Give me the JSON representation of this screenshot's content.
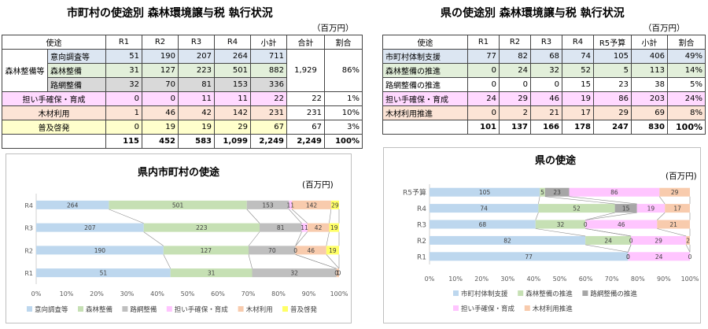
{
  "left": {
    "title": "市町村の使途別 森林環境譲与税 執行状況",
    "unit": "（百万円）",
    "table": {
      "headers": [
        "使途",
        "R1",
        "R2",
        "R3",
        "R4",
        "小計",
        "合計",
        "割合"
      ],
      "group_label": "森林整備等",
      "group_total": "1,929",
      "group_share": "86%",
      "group_rows": [
        {
          "label": "意向調査等",
          "values": [
            "51",
            "190",
            "207",
            "264",
            "711"
          ],
          "color": "#dce6f2"
        },
        {
          "label": "森林整備",
          "values": [
            "31",
            "127",
            "223",
            "501",
            "882"
          ],
          "color": "#e2efda"
        },
        {
          "label": "路網整備",
          "values": [
            "32",
            "70",
            "81",
            "153",
            "336"
          ],
          "color": "#d9d9d9"
        }
      ],
      "rows": [
        {
          "label": "担い手確保・育成",
          "values": [
            "0",
            "0",
            "11",
            "11",
            "22",
            "22",
            "1%"
          ],
          "color": "#ffd9ff"
        },
        {
          "label": "木材利用",
          "values": [
            "1",
            "46",
            "42",
            "142",
            "231",
            "231",
            "10%"
          ],
          "color": "#fce4d6"
        },
        {
          "label": "普及啓発",
          "values": [
            "0",
            "19",
            "19",
            "29",
            "67",
            "67",
            "3%"
          ],
          "color": "#ffffcc"
        }
      ],
      "total": [
        "115",
        "452",
        "583",
        "1,099",
        "2,249",
        "2,249",
        "100%"
      ]
    }
  },
  "right": {
    "title": "県の使途別 森林環境譲与税 執行状況",
    "unit": "（百万円）",
    "table": {
      "headers": [
        "使途",
        "R1",
        "R2",
        "R3",
        "R4",
        "R5予算",
        "小計",
        "割合"
      ],
      "rows": [
        {
          "label": "市町村体制支援",
          "values": [
            "77",
            "82",
            "68",
            "74",
            "105",
            "406",
            "49%"
          ],
          "color": "#dce6f2"
        },
        {
          "label": "森林整備の推進",
          "values": [
            "0",
            "24",
            "32",
            "52",
            "5",
            "113",
            "14%"
          ],
          "color": "#e2efda"
        },
        {
          "label": "路網整備の推進",
          "values": [
            "0",
            "0",
            "0",
            "15",
            "23",
            "38",
            "5%"
          ],
          "color": "#ffffff"
        },
        {
          "label": "担い手確保・育成",
          "values": [
            "24",
            "29",
            "46",
            "19",
            "86",
            "203",
            "24%"
          ],
          "color": "#ffd9ff"
        },
        {
          "label": "木材利用推進",
          "values": [
            "0",
            "2",
            "21",
            "17",
            "29",
            "69",
            "8%"
          ],
          "color": "#fce4d6"
        }
      ],
      "total": [
        "101",
        "137",
        "166",
        "178",
        "247",
        "830",
        "100%"
      ]
    }
  },
  "chart_data": [
    {
      "type": "bar",
      "orientation": "horizontal",
      "stacked": "percent",
      "title": "県内市町村の使途",
      "unit": "(百万円)",
      "categories": [
        "R4",
        "R3",
        "R2",
        "R1"
      ],
      "series": [
        {
          "name": "意向調査等",
          "values": [
            264,
            207,
            190,
            51
          ],
          "color": "#bdd7ee"
        },
        {
          "name": "森林整備",
          "values": [
            501,
            223,
            127,
            31
          ],
          "color": "#c6e0b4"
        },
        {
          "name": "路網整備",
          "values": [
            153,
            81,
            70,
            32
          ],
          "color": "#bfbfbf"
        },
        {
          "name": "担い手確保・育成",
          "values": [
            11,
            11,
            0,
            0
          ],
          "color": "#ffc5ff"
        },
        {
          "name": "木材利用",
          "values": [
            142,
            42,
            46,
            1
          ],
          "color": "#f8cbad"
        },
        {
          "name": "普及啓発",
          "values": [
            29,
            19,
            19,
            0
          ],
          "color": "#ffff66"
        }
      ],
      "xticks": [
        "0%",
        "10%",
        "20%",
        "30%",
        "40%",
        "50%",
        "60%",
        "70%",
        "80%",
        "90%",
        "100%"
      ],
      "legend": "bottom",
      "grid": false
    },
    {
      "type": "bar",
      "orientation": "horizontal",
      "stacked": "percent",
      "title": "県の使途",
      "unit": "(百万円)",
      "categories": [
        "R5予算",
        "R4",
        "R3",
        "R2",
        "R1"
      ],
      "series": [
        {
          "name": "市町村体制支援",
          "values": [
            105,
            74,
            68,
            82,
            77
          ],
          "color": "#bdd7ee"
        },
        {
          "name": "森林整備の推進",
          "values": [
            5,
            52,
            32,
            24,
            0
          ],
          "color": "#c6e0b4"
        },
        {
          "name": "路網整備の推進",
          "values": [
            23,
            15,
            0,
            0,
            0
          ],
          "color": "#a6a6a6"
        },
        {
          "name": "担い手確保・育成",
          "values": [
            86,
            19,
            46,
            29,
            24
          ],
          "color": "#ffc5ff"
        },
        {
          "name": "木材利用推進",
          "values": [
            29,
            17,
            21,
            2,
            0
          ],
          "color": "#f8cbad"
        }
      ],
      "xticks": [
        "0%",
        "10%",
        "20%",
        "30%",
        "40%",
        "50%",
        "60%",
        "70%",
        "80%",
        "90%",
        "100%"
      ],
      "legend": "bottom",
      "grid": false
    }
  ]
}
